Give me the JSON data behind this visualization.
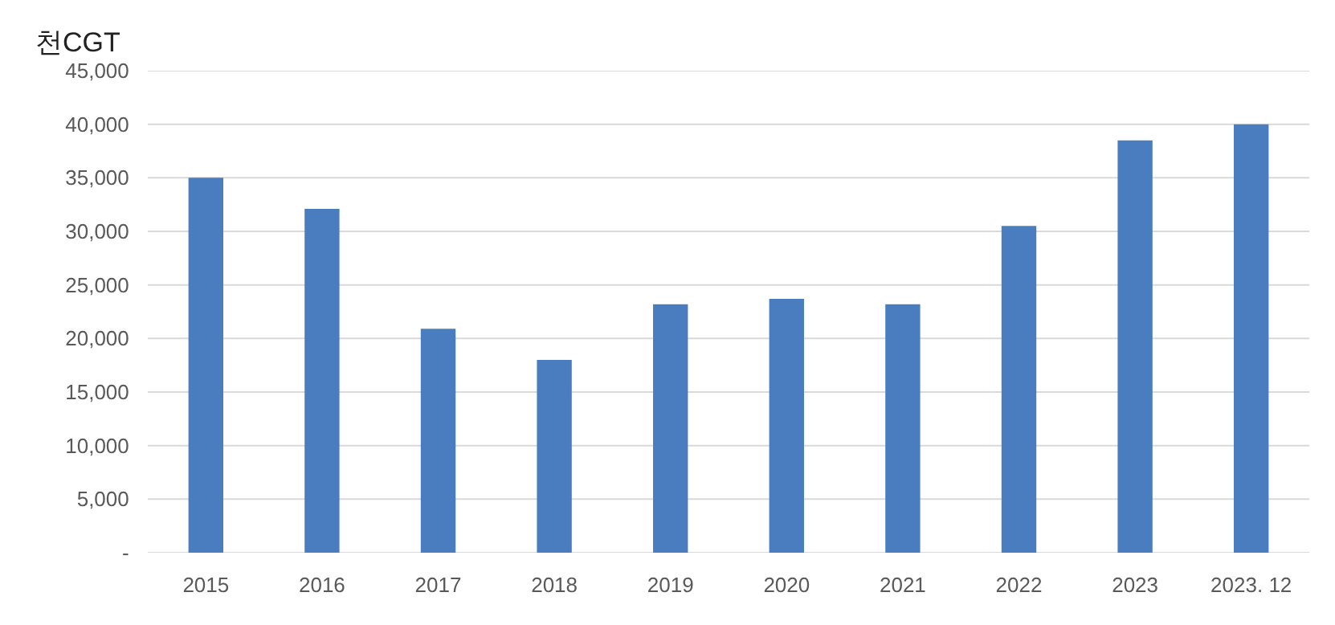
{
  "chart_data": {
    "type": "bar",
    "ylabel": "천CGT",
    "categories": [
      "2015",
      "2016",
      "2017",
      "2018",
      "2019",
      "2020",
      "2021",
      "2022",
      "2023",
      "2023. 12"
    ],
    "values": [
      35000,
      32100,
      20900,
      18000,
      23200,
      23700,
      23200,
      30500,
      38500,
      40000
    ],
    "color": "#4a7dbf",
    "ylim": [
      0,
      45000
    ],
    "yticks": [
      {
        "value": 0,
        "label": "-"
      },
      {
        "value": 5000,
        "label": "5,000"
      },
      {
        "value": 10000,
        "label": "10,000"
      },
      {
        "value": 15000,
        "label": "15,000"
      },
      {
        "value": 20000,
        "label": "20,000"
      },
      {
        "value": 25000,
        "label": "25,000"
      },
      {
        "value": 30000,
        "label": "30,000"
      },
      {
        "value": 35000,
        "label": "35,000"
      },
      {
        "value": 40000,
        "label": "40,000"
      },
      {
        "value": 45000,
        "label": "45,000"
      }
    ],
    "grid": "y"
  }
}
